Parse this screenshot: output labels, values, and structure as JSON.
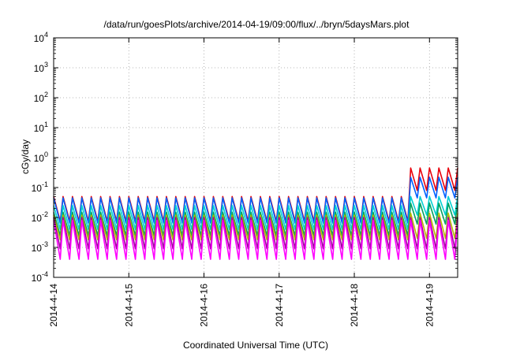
{
  "chart_data": {
    "type": "line",
    "title": "/data/run/goesPlots/archive/2014-04-19/09:00/flux/../bryn/5daysMars.plot",
    "xlabel": "Coordinated Universal Time (UTC)",
    "ylabel": "cGy/day",
    "xlim": [
      "2014-04-14T00:00",
      "2014-04-19T09:00"
    ],
    "ylim": [
      0.0001,
      10000
    ],
    "yscale": "log",
    "grid": true,
    "x_tick_labels": [
      "2014-4-14",
      "2014-4-15",
      "2014-4-16",
      "2014-4-17",
      "2014-4-18",
      "2014-4-19"
    ],
    "y_tick_labels": [
      {
        "base": "10",
        "exp": "-4"
      },
      {
        "base": "10",
        "exp": "-3"
      },
      {
        "base": "10",
        "exp": "-2"
      },
      {
        "base": "10",
        "exp": "-1"
      },
      {
        "base": "10",
        "exp": "0"
      },
      {
        "base": "10",
        "exp": "1"
      },
      {
        "base": "10",
        "exp": "2"
      },
      {
        "base": "10",
        "exp": "3"
      },
      {
        "base": "10",
        "exp": "4"
      }
    ],
    "pattern": {
      "cycles_per_day": 8,
      "first_peak": "2014-04-14T00:00",
      "event_start": "2014-04-18T16:00"
    },
    "series": [
      {
        "color": "#e8000b",
        "quiet_peak": 0.05,
        "quiet_trough": 0.0075,
        "event_peak": 0.45,
        "event_trough": 0.08
      },
      {
        "color": "#0060ff",
        "quiet_peak": 0.045,
        "quiet_trough": 0.0065,
        "event_peak": 0.22,
        "event_trough": 0.045
      },
      {
        "color": "#00d0d0",
        "quiet_peak": 0.025,
        "quiet_trough": 0.004,
        "event_peak": 0.05,
        "event_trough": 0.012
      },
      {
        "color": "#00a060",
        "quiet_peak": 0.015,
        "quiet_trough": 0.0025,
        "event_peak": 0.03,
        "event_trough": 0.006
      },
      {
        "color": "#b8b800",
        "quiet_peak": 0.012,
        "quiet_trough": 0.0018,
        "event_peak": 0.014,
        "event_trough": 0.002
      },
      {
        "color": "#a000a0",
        "quiet_peak": 0.01,
        "quiet_trough": 0.0009,
        "event_peak": 0.01,
        "event_trough": 0.0009
      },
      {
        "color": "#ff00ff",
        "quiet_peak": 0.008,
        "quiet_trough": 0.0004,
        "event_peak": 0.008,
        "event_trough": 0.0004
      }
    ]
  }
}
